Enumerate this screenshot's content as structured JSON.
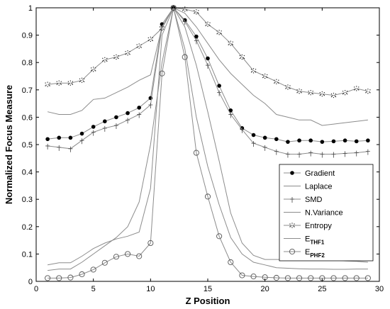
{
  "chart_data": {
    "type": "line",
    "xlabel": "Z Position",
    "ylabel": "Normalized Focus Measure",
    "xlim": [
      0,
      30
    ],
    "ylim": [
      0,
      1
    ],
    "xticks": [
      "0",
      "5",
      "10",
      "15",
      "20",
      "25",
      "30"
    ],
    "yticks": [
      "0",
      "0.1",
      "0.2",
      "0.3",
      "0.4",
      "0.5",
      "0.6",
      "0.7",
      "0.8",
      "0.9",
      "1"
    ],
    "grid": false,
    "legend_position": "lower-right",
    "x": [
      1,
      2,
      3,
      4,
      5,
      6,
      7,
      8,
      9,
      10,
      11,
      12,
      13,
      14,
      15,
      16,
      17,
      18,
      19,
      20,
      21,
      22,
      23,
      24,
      25,
      26,
      27,
      28,
      29
    ],
    "series": [
      {
        "name": "Gradient",
        "marker": "filled-circle",
        "values": [
          0.52,
          0.525,
          0.525,
          0.54,
          0.565,
          0.585,
          0.6,
          0.615,
          0.635,
          0.67,
          0.94,
          1.0,
          0.955,
          0.895,
          0.815,
          0.715,
          0.625,
          0.56,
          0.535,
          0.525,
          0.52,
          0.51,
          0.515,
          0.515,
          0.51,
          0.512,
          0.515,
          0.512,
          0.515
        ]
      },
      {
        "name": "Laplace",
        "marker": "none",
        "values": [
          0.62,
          0.61,
          0.61,
          0.625,
          0.665,
          0.67,
          0.69,
          0.71,
          0.735,
          0.755,
          0.93,
          1.0,
          0.98,
          0.93,
          0.87,
          0.81,
          0.76,
          0.72,
          0.68,
          0.65,
          0.61,
          0.6,
          0.59,
          0.59,
          0.57,
          0.575,
          0.58,
          0.585,
          0.59
        ]
      },
      {
        "name": "SMD",
        "marker": "tick",
        "values": [
          0.495,
          0.49,
          0.485,
          0.515,
          0.545,
          0.56,
          0.57,
          0.59,
          0.61,
          0.645,
          0.93,
          1.0,
          0.95,
          0.88,
          0.79,
          0.69,
          0.61,
          0.555,
          0.505,
          0.49,
          0.475,
          0.465,
          0.465,
          0.47,
          0.465,
          0.465,
          0.468,
          0.47,
          0.475
        ]
      },
      {
        "name": "N.Variance",
        "marker": "none",
        "values": [
          0.04,
          0.045,
          0.045,
          0.07,
          0.1,
          0.13,
          0.16,
          0.2,
          0.29,
          0.5,
          0.8,
          1.0,
          0.85,
          0.6,
          0.42,
          0.28,
          0.16,
          0.1,
          0.07,
          0.06,
          0.05,
          0.048,
          0.046,
          0.045,
          0.045,
          0.044,
          0.044,
          0.045,
          0.045
        ]
      },
      {
        "name": "Entropy",
        "marker": "dotted-star",
        "values": [
          0.72,
          0.725,
          0.725,
          0.735,
          0.775,
          0.81,
          0.82,
          0.835,
          0.86,
          0.885,
          0.925,
          1.0,
          0.995,
          0.985,
          0.94,
          0.91,
          0.87,
          0.82,
          0.77,
          0.75,
          0.73,
          0.71,
          0.695,
          0.69,
          0.685,
          0.68,
          0.69,
          0.705,
          0.695
        ]
      },
      {
        "name": "E_THF1",
        "marker": "none",
        "values": [
          0.06,
          0.068,
          0.068,
          0.092,
          0.12,
          0.14,
          0.155,
          0.165,
          0.18,
          0.34,
          0.9,
          1.0,
          0.93,
          0.79,
          0.62,
          0.44,
          0.25,
          0.14,
          0.095,
          0.08,
          0.08,
          0.08,
          0.08,
          0.08,
          0.08,
          0.078,
          0.075,
          0.073,
          0.07
        ]
      },
      {
        "name": "E_PHF2",
        "marker": "open-circle",
        "values": [
          0.012,
          0.012,
          0.014,
          0.026,
          0.043,
          0.068,
          0.09,
          0.1,
          0.092,
          0.14,
          0.76,
          1.0,
          0.82,
          0.47,
          0.31,
          0.165,
          0.07,
          0.022,
          0.018,
          0.015,
          0.013,
          0.012,
          0.012,
          0.012,
          0.012,
          0.012,
          0.012,
          0.012,
          0.012
        ]
      }
    ],
    "legend": [
      {
        "label": "Gradient",
        "sub": ""
      },
      {
        "label": "Laplace",
        "sub": ""
      },
      {
        "label": "SMD",
        "sub": ""
      },
      {
        "label": "N.Variance",
        "sub": ""
      },
      {
        "label": "Entropy",
        "sub": ""
      },
      {
        "label": "E",
        "sub": "THF1"
      },
      {
        "label": "E",
        "sub": "PHF2"
      }
    ],
    "colors": {
      "line": "#8c8c8c",
      "marker": "#000000",
      "axis": "#000000"
    }
  }
}
